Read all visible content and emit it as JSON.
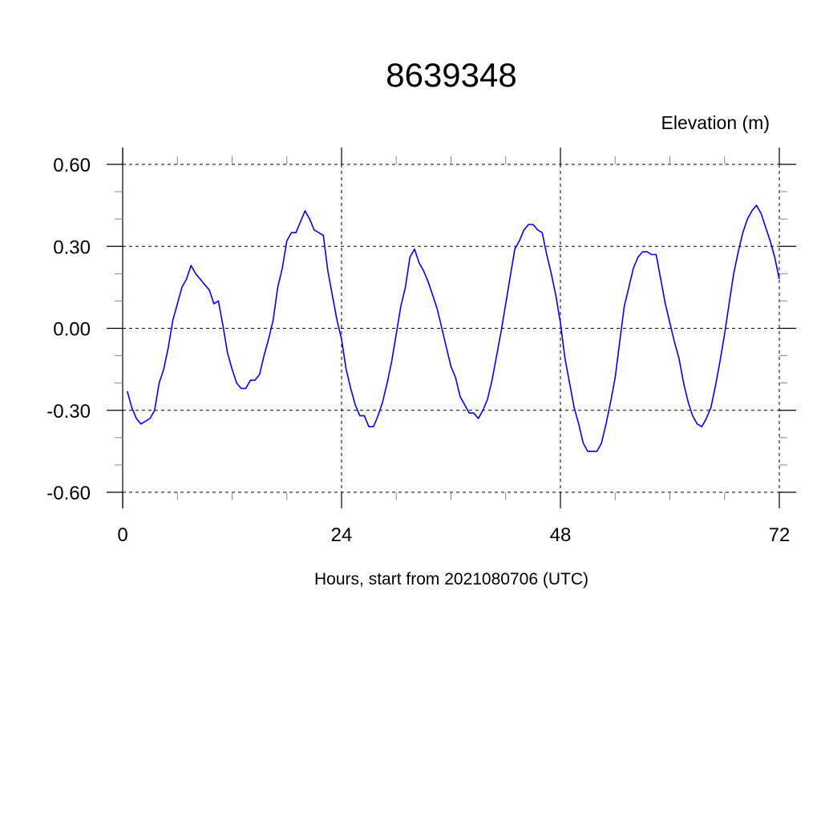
{
  "chart_data": {
    "type": "line",
    "title": "8639348",
    "ylabel": "Elevation (m)",
    "xlabel": "Hours, start from 2021080706 (UTC)",
    "xlim": [
      0,
      72
    ],
    "ylim": [
      -0.6,
      0.6
    ],
    "x_ticks": [
      0,
      24,
      48,
      72
    ],
    "x_tick_labels": [
      "0",
      "24",
      "48",
      "72"
    ],
    "y_ticks": [
      0.6,
      0.3,
      0.0,
      -0.3,
      -0.6
    ],
    "y_tick_labels": [
      "0.60",
      "0.30",
      "0.00",
      "-0.30",
      "-0.60"
    ],
    "grid": true,
    "line_color": "#0000ff",
    "series": [
      {
        "x": [
          0.5,
          1,
          1.5,
          2,
          2.5,
          3,
          3.5,
          4,
          4.5,
          5,
          5.5,
          6,
          6.5,
          7,
          7.5,
          8,
          8.5,
          9,
          9.5,
          10,
          10.5,
          11,
          11.5,
          12,
          12.5,
          13,
          13.5,
          14,
          14.5,
          15,
          15.5,
          16,
          16.5,
          17,
          17.5,
          18,
          18.5,
          19,
          19.5,
          20,
          20.5,
          21,
          21.5,
          22,
          22.5,
          23,
          23.5,
          24,
          24.5,
          25,
          25.5,
          26,
          26.5,
          27,
          27.5,
          28,
          28.5,
          29,
          29.5,
          30,
          30.5,
          31,
          31.5,
          32,
          32.5,
          33,
          33.5,
          34,
          34.5,
          35,
          35.5,
          36,
          36.5,
          37,
          37.5,
          38,
          38.5,
          39,
          39.5,
          40,
          40.5,
          41,
          41.5,
          42,
          42.5,
          43,
          43.5,
          44,
          44.5,
          45,
          45.5,
          46,
          46.5,
          47,
          47.5,
          48,
          48.5,
          49,
          49.5,
          50,
          50.5,
          51,
          51.5,
          52,
          52.5,
          53,
          53.5,
          54,
          54.5,
          55,
          55.5,
          56,
          56.5,
          57,
          57.5,
          58,
          58.5,
          59,
          59.5,
          60,
          60.5,
          61,
          61.5,
          62,
          62.5,
          63,
          63.5,
          64,
          64.5,
          65,
          65.5,
          66,
          66.5,
          67,
          67.5,
          68,
          68.5,
          69,
          69.5,
          70,
          70.5,
          71,
          71.5,
          72
        ],
        "y": [
          -0.23,
          -0.29,
          -0.33,
          -0.35,
          -0.34,
          -0.33,
          -0.3,
          -0.2,
          -0.15,
          -0.07,
          0.03,
          0.09,
          0.15,
          0.18,
          0.23,
          0.2,
          0.18,
          0.16,
          0.14,
          0.09,
          0.1,
          0.01,
          -0.09,
          -0.15,
          -0.2,
          -0.22,
          -0.22,
          -0.19,
          -0.19,
          -0.17,
          -0.1,
          -0.04,
          0.03,
          0.15,
          0.22,
          0.32,
          0.35,
          0.35,
          0.39,
          0.43,
          0.4,
          0.36,
          0.35,
          0.34,
          0.21,
          0.12,
          0.03,
          -0.04,
          -0.15,
          -0.22,
          -0.28,
          -0.32,
          -0.32,
          -0.36,
          -0.36,
          -0.32,
          -0.27,
          -0.2,
          -0.12,
          -0.02,
          0.08,
          0.15,
          0.26,
          0.29,
          0.24,
          0.21,
          0.17,
          0.12,
          0.07,
          0.0,
          -0.07,
          -0.14,
          -0.18,
          -0.25,
          -0.28,
          -0.31,
          -0.31,
          -0.33,
          -0.3,
          -0.26,
          -0.19,
          -0.1,
          -0.01,
          0.09,
          0.19,
          0.29,
          0.32,
          0.36,
          0.38,
          0.38,
          0.36,
          0.35,
          0.27,
          0.2,
          0.12,
          0.02,
          -0.11,
          -0.2,
          -0.29,
          -0.35,
          -0.42,
          -0.45,
          -0.45,
          -0.45,
          -0.42,
          -0.35,
          -0.27,
          -0.18,
          -0.05,
          0.08,
          0.15,
          0.22,
          0.26,
          0.28,
          0.28,
          0.27,
          0.27,
          0.18,
          0.09,
          0.02,
          -0.05,
          -0.11,
          -0.2,
          -0.27,
          -0.32,
          -0.35,
          -0.36,
          -0.33,
          -0.29,
          -0.21,
          -0.12,
          -0.02,
          0.09,
          0.2,
          0.28,
          0.35,
          0.4,
          0.43,
          0.45,
          0.42,
          0.37,
          0.32,
          0.26,
          0.18
        ]
      }
    ]
  }
}
